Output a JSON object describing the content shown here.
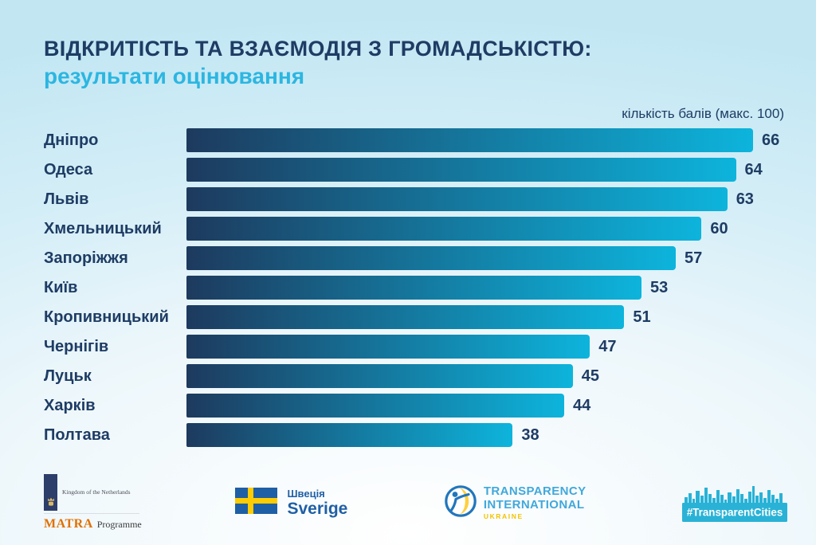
{
  "header": {
    "title": "ВІДКРИТІСТЬ ТА ВЗАЄМОДІЯ З ГРОМАДСЬКІСТЮ:",
    "subtitle": "результати оцінювання"
  },
  "chart_data": {
    "type": "bar",
    "orientation": "horizontal",
    "title": "ВІДКРИТІСТЬ ТА ВЗАЄМОДІЯ З ГРОМАДСЬКІСТЮ: результати оцінювання",
    "axis_note": "кількість балів (макс. 100)",
    "max_points": 100,
    "categories": [
      "Дніпро",
      "Одеса",
      "Львів",
      "Хмельницький",
      "Запоріжжя",
      "Київ",
      "Кропивницький",
      "Чернігів",
      "Луцьк",
      "Харків",
      "Полтава"
    ],
    "values": [
      66,
      64,
      63,
      60,
      57,
      53,
      51,
      47,
      45,
      44,
      38
    ],
    "xlim": [
      0,
      66
    ],
    "grid": false,
    "legend": false,
    "bar_color_start": "#1d3a5e",
    "bar_color_end": "#0db4dc"
  },
  "colors": {
    "title": "#1e3c64",
    "subtitle": "#2cb6e1",
    "value_label": "#1e3c64",
    "background_top": "#c2e7f3",
    "background_bottom": "#ffffff",
    "transparent_cities_cyan": "#29b2d6",
    "sweden_blue": "#1f5fa5",
    "sweden_yellow": "#fecc02",
    "ti_blue": "#41a8db",
    "ti_yellow": "#f3c300",
    "matra_orange": "#e17000",
    "matra_navy": "#2d3e6b"
  },
  "footer": {
    "matra": {
      "kingdom_text": "Kingdom of the Netherlands",
      "matra_text": "MATRA",
      "programme_text": "Programme"
    },
    "sweden": {
      "line1": "Швеція",
      "line2": "Sverige"
    },
    "ti": {
      "line1": "TRANSPARENCY",
      "line2": "INTERNATIONAL",
      "line3": "UKRAINE"
    },
    "transparent_cities": {
      "label": "#TransparentCities"
    }
  }
}
